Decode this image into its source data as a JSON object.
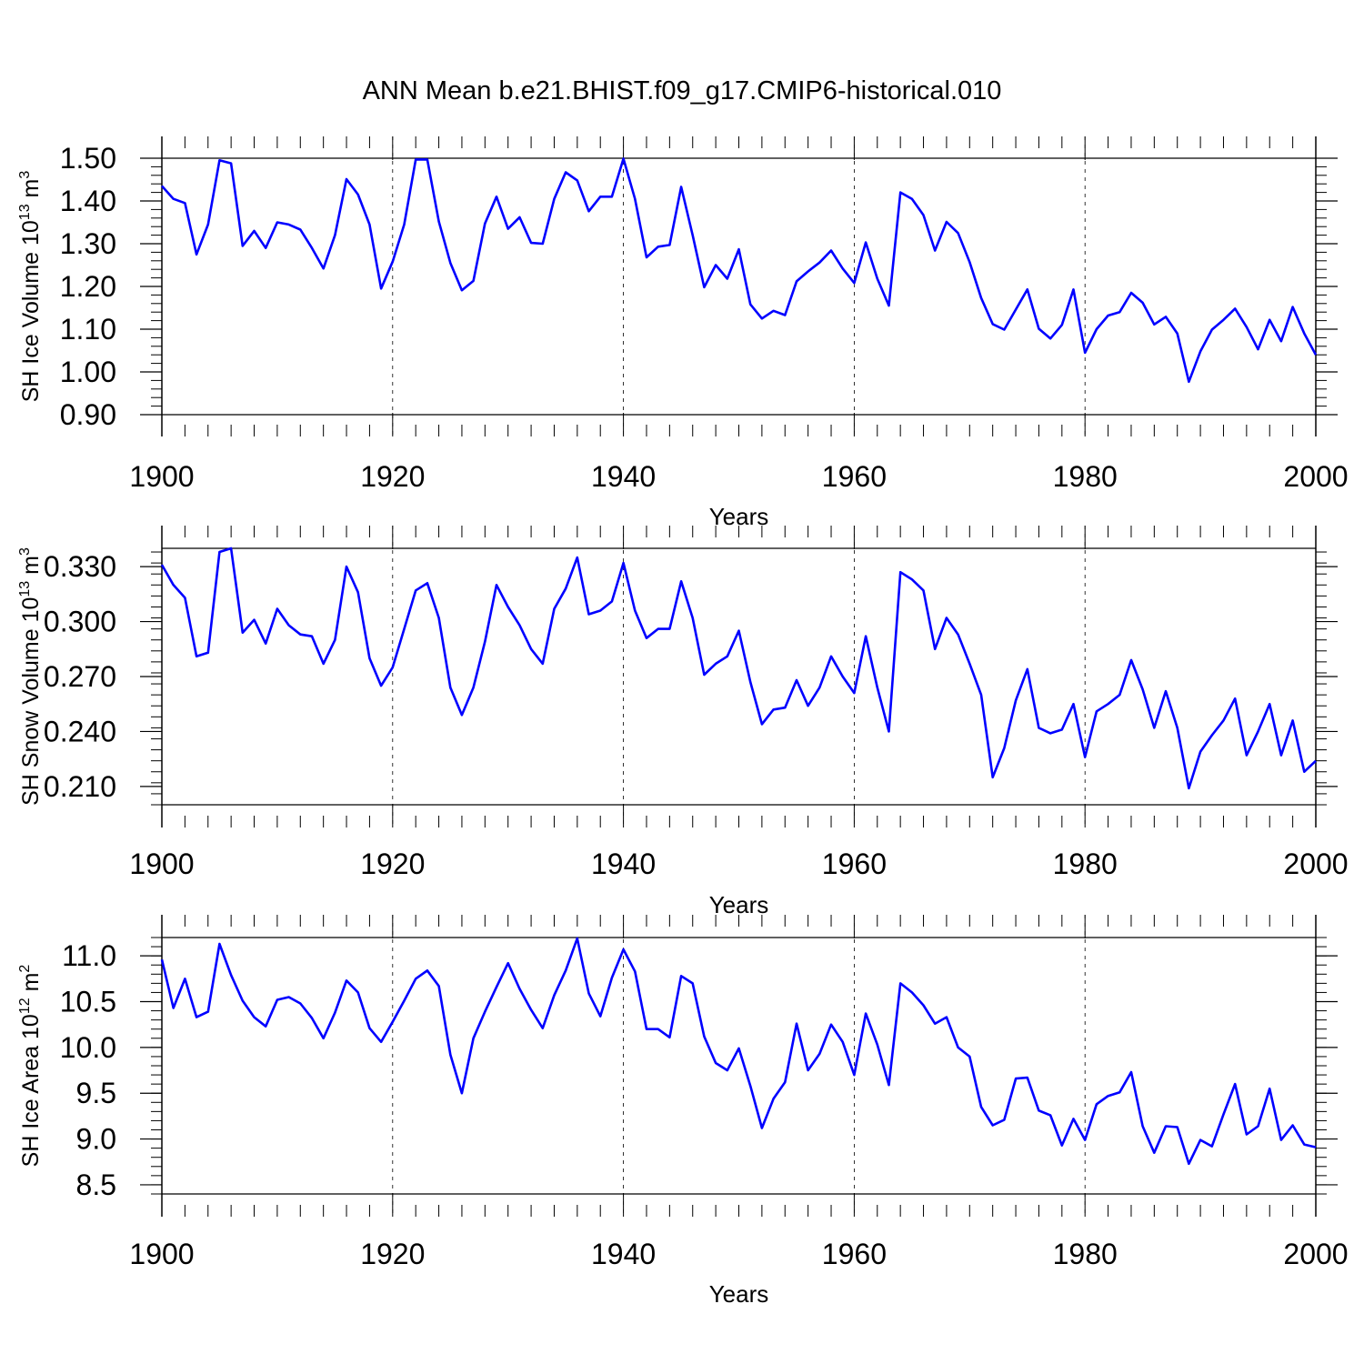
{
  "title": "ANN Mean b.e21.BHIST.f09_g17.CMIP6-historical.010",
  "chart_data": [
    {
      "type": "line",
      "ylabel_main": "SH Ice Volume 10",
      "ylabel_exp": "13",
      "ylabel_unit": " m",
      "ylabel_unit_exp": "3",
      "xlabel": "Years",
      "xlim": [
        1900,
        2000
      ],
      "ylim": [
        0.9,
        1.5
      ],
      "yticks": [
        "1.50",
        "1.40",
        "1.30",
        "1.20",
        "1.10",
        "1.00",
        "0.90"
      ],
      "xticks": [
        "1900",
        "1920",
        "1940",
        "1960",
        "1980",
        "2000"
      ],
      "grid": "dashed vertical at 1920, 1940, 1960, 1980",
      "color": "#0000ff",
      "series": [
        {
          "x": [
            1900,
            1901,
            1902,
            1903,
            1904,
            1905,
            1906,
            1907,
            1908,
            1909,
            1910,
            1911,
            1912,
            1913,
            1914,
            1915,
            1916,
            1917,
            1918,
            1919,
            1920,
            1921,
            1922,
            1923,
            1924,
            1925,
            1926,
            1927,
            1928,
            1929,
            1930,
            1931,
            1932,
            1933,
            1934,
            1935,
            1936,
            1937,
            1938,
            1939,
            1940,
            1941,
            1942,
            1943,
            1944,
            1945,
            1946,
            1947,
            1948,
            1949,
            1950,
            1951,
            1952,
            1953,
            1954,
            1955,
            1956,
            1957,
            1958,
            1959,
            1960,
            1961,
            1962,
            1963,
            1964,
            1965,
            1966,
            1967,
            1968,
            1969,
            1970,
            1971,
            1972,
            1973,
            1974,
            1975,
            1976,
            1977,
            1978,
            1979,
            1980,
            1981,
            1982,
            1983,
            1984,
            1985,
            1986,
            1987,
            1988,
            1989,
            1990,
            1991,
            1992,
            1993,
            1994,
            1995,
            1996,
            1997,
            1998,
            1999,
            2000
          ],
          "values": [
            1.435,
            1.405,
            1.395,
            1.275,
            1.345,
            1.495,
            1.488,
            1.295,
            1.33,
            1.29,
            1.35,
            1.345,
            1.333,
            1.29,
            1.242,
            1.32,
            1.451,
            1.415,
            1.345,
            1.195,
            1.258,
            1.345,
            1.497,
            1.497,
            1.352,
            1.255,
            1.191,
            1.213,
            1.347,
            1.41,
            1.335,
            1.362,
            1.302,
            1.3,
            1.405,
            1.467,
            1.448,
            1.376,
            1.41,
            1.41,
            1.499,
            1.405,
            1.268,
            1.293,
            1.297,
            1.433,
            1.32,
            1.198,
            1.25,
            1.218,
            1.287,
            1.158,
            1.125,
            1.143,
            1.133,
            1.212,
            1.235,
            1.256,
            1.284,
            1.242,
            1.208,
            1.303,
            1.218,
            1.155,
            1.42,
            1.405,
            1.367,
            1.284,
            1.351,
            1.325,
            1.257,
            1.173,
            1.112,
            1.099,
            1.146,
            1.193,
            1.101,
            1.078,
            1.11,
            1.193,
            1.045,
            1.1,
            1.132,
            1.14,
            1.185,
            1.162,
            1.111,
            1.129,
            1.09,
            0.977,
            1.048,
            1.099,
            1.122,
            1.148,
            1.105,
            1.053,
            1.122,
            1.072,
            1.152,
            1.09,
            1.04
          ]
        }
      ]
    },
    {
      "type": "line",
      "ylabel_main": "SH Snow Volume 10",
      "ylabel_exp": "13",
      "ylabel_unit": " m",
      "ylabel_unit_exp": "3",
      "xlabel": "Years",
      "xlim": [
        1900,
        2000
      ],
      "ylim": [
        0.2,
        0.34
      ],
      "yticks": [
        "0.330",
        "0.300",
        "0.270",
        "0.240",
        "0.210"
      ],
      "xticks": [
        "1900",
        "1920",
        "1940",
        "1960",
        "1980",
        "2000"
      ],
      "grid": "dashed vertical at 1920, 1940, 1960, 1980",
      "color": "#0000ff",
      "series": [
        {
          "x": [
            1900,
            1901,
            1902,
            1903,
            1904,
            1905,
            1906,
            1907,
            1908,
            1909,
            1910,
            1911,
            1912,
            1913,
            1914,
            1915,
            1916,
            1917,
            1918,
            1919,
            1920,
            1921,
            1922,
            1923,
            1924,
            1925,
            1926,
            1927,
            1928,
            1929,
            1930,
            1931,
            1932,
            1933,
            1934,
            1935,
            1936,
            1937,
            1938,
            1939,
            1940,
            1941,
            1942,
            1943,
            1944,
            1945,
            1946,
            1947,
            1948,
            1949,
            1950,
            1951,
            1952,
            1953,
            1954,
            1955,
            1956,
            1957,
            1958,
            1959,
            1960,
            1961,
            1962,
            1963,
            1964,
            1965,
            1966,
            1967,
            1968,
            1969,
            1970,
            1971,
            1972,
            1973,
            1974,
            1975,
            1976,
            1977,
            1978,
            1979,
            1980,
            1981,
            1982,
            1983,
            1984,
            1985,
            1986,
            1987,
            1988,
            1989,
            1990,
            1991,
            1992,
            1993,
            1994,
            1995,
            1996,
            1997,
            1998,
            1999,
            2000
          ],
          "values": [
            0.331,
            0.32,
            0.313,
            0.281,
            0.283,
            0.338,
            0.34,
            0.294,
            0.301,
            0.288,
            0.307,
            0.298,
            0.293,
            0.292,
            0.277,
            0.29,
            0.33,
            0.316,
            0.28,
            0.265,
            0.275,
            0.296,
            0.317,
            0.321,
            0.302,
            0.264,
            0.249,
            0.264,
            0.289,
            0.32,
            0.308,
            0.298,
            0.285,
            0.277,
            0.307,
            0.318,
            0.335,
            0.304,
            0.306,
            0.311,
            0.332,
            0.306,
            0.291,
            0.296,
            0.296,
            0.322,
            0.302,
            0.271,
            0.277,
            0.281,
            0.295,
            0.267,
            0.244,
            0.252,
            0.253,
            0.268,
            0.254,
            0.264,
            0.281,
            0.27,
            0.261,
            0.292,
            0.264,
            0.24,
            0.327,
            0.323,
            0.317,
            0.285,
            0.302,
            0.293,
            0.277,
            0.26,
            0.215,
            0.231,
            0.257,
            0.274,
            0.242,
            0.239,
            0.241,
            0.255,
            0.226,
            0.251,
            0.255,
            0.26,
            0.279,
            0.263,
            0.242,
            0.262,
            0.242,
            0.209,
            0.229,
            0.238,
            0.246,
            0.258,
            0.227,
            0.24,
            0.255,
            0.227,
            0.246,
            0.218,
            0.224
          ]
        }
      ]
    },
    {
      "type": "line",
      "ylabel_main": "SH Ice Area 10",
      "ylabel_exp": "12",
      "ylabel_unit": " m",
      "ylabel_unit_exp": "2",
      "xlabel": "Years",
      "xlim": [
        1900,
        2000
      ],
      "ylim": [
        8.4,
        11.2
      ],
      "yticks": [
        "11.0",
        "10.5",
        "10.0",
        "9.5",
        "9.0",
        "8.5"
      ],
      "xticks": [
        "1900",
        "1920",
        "1940",
        "1960",
        "1980",
        "2000"
      ],
      "grid": "dashed vertical at 1920, 1940, 1960, 1980",
      "color": "#0000ff",
      "series": [
        {
          "x": [
            1900,
            1901,
            1902,
            1903,
            1904,
            1905,
            1906,
            1907,
            1908,
            1909,
            1910,
            1911,
            1912,
            1913,
            1914,
            1915,
            1916,
            1917,
            1918,
            1919,
            1920,
            1921,
            1922,
            1923,
            1924,
            1925,
            1926,
            1927,
            1928,
            1929,
            1930,
            1931,
            1932,
            1933,
            1934,
            1935,
            1936,
            1937,
            1938,
            1939,
            1940,
            1941,
            1942,
            1943,
            1944,
            1945,
            1946,
            1947,
            1948,
            1949,
            1950,
            1951,
            1952,
            1953,
            1954,
            1955,
            1956,
            1957,
            1958,
            1959,
            1960,
            1961,
            1962,
            1963,
            1964,
            1965,
            1966,
            1967,
            1968,
            1969,
            1970,
            1971,
            1972,
            1973,
            1974,
            1975,
            1976,
            1977,
            1978,
            1979,
            1980,
            1981,
            1982,
            1983,
            1984,
            1985,
            1986,
            1987,
            1988,
            1989,
            1990,
            1991,
            1992,
            1993,
            1994,
            1995,
            1996,
            1997,
            1998,
            1999,
            2000
          ],
          "values": [
            10.96,
            10.43,
            10.75,
            10.33,
            10.39,
            11.13,
            10.79,
            10.51,
            10.33,
            10.23,
            10.52,
            10.55,
            10.48,
            10.32,
            10.1,
            10.38,
            10.73,
            10.6,
            10.21,
            10.06,
            10.28,
            10.51,
            10.75,
            10.84,
            10.67,
            9.92,
            9.5,
            10.1,
            10.39,
            10.66,
            10.92,
            10.64,
            10.41,
            10.21,
            10.57,
            10.84,
            11.19,
            10.59,
            10.34,
            10.76,
            11.07,
            10.83,
            10.2,
            10.2,
            10.11,
            10.78,
            10.7,
            10.12,
            9.83,
            9.75,
            9.99,
            9.58,
            9.12,
            9.44,
            9.62,
            10.26,
            9.75,
            9.93,
            10.25,
            10.06,
            9.7,
            10.37,
            10.03,
            9.59,
            10.7,
            10.6,
            10.46,
            10.26,
            10.33,
            10.0,
            9.9,
            9.35,
            9.15,
            9.21,
            9.66,
            9.67,
            9.31,
            9.26,
            8.93,
            9.22,
            8.99,
            9.38,
            9.47,
            9.51,
            9.73,
            9.14,
            8.85,
            9.14,
            9.13,
            8.73,
            8.99,
            8.92,
            9.27,
            9.6,
            9.05,
            9.14,
            9.55,
            8.99,
            9.15,
            8.94,
            8.91
          ]
        }
      ]
    }
  ]
}
